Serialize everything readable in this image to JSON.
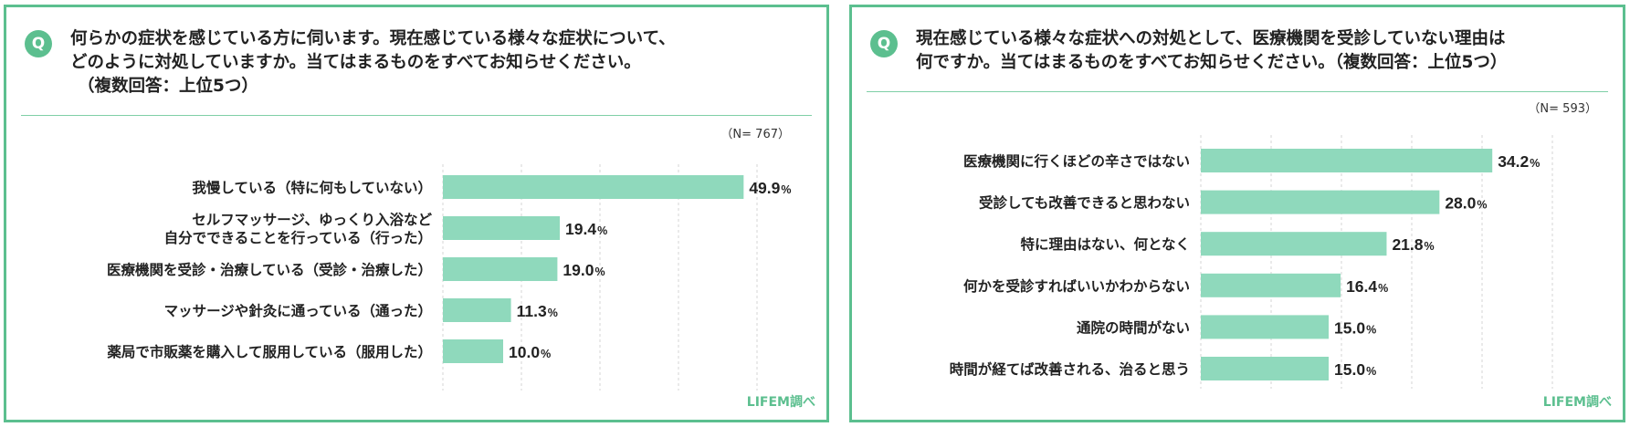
{
  "credit": "LIFEM調べ",
  "colors": {
    "bar": "#8fd9bc",
    "accent": "#5cbf8f"
  },
  "panels": [
    {
      "badge": "Q",
      "question_lines": [
        "何らかの症状を感じている方に伺います。現在感じている様々な症状について、",
        "どのように対処していますか。当てはまるものをすべてお知らせください。",
        "（複数回答：上位5つ）"
      ],
      "n_label": "（N= 767）"
    },
    {
      "badge": "Q",
      "question_lines": [
        "現在感じている様々な症状への対処として、医療機関を受診していない理由は",
        "何ですか。当てはまるものをすべてお知らせください。（複数回答：上位5つ）"
      ],
      "n_label": "（N= 593）"
    }
  ],
  "chart_data": [
    {
      "type": "bar",
      "orientation": "horizontal",
      "categories": [
        [
          "我慢している（特に何もしていない）"
        ],
        [
          "セルフマッサージ、ゆっくり入浴など",
          "自分でできることを行っている（行った）"
        ],
        [
          "医療機関を受診・治療している（受診・治療した）"
        ],
        [
          "マッサージや針灸に通っている（通った）"
        ],
        [
          "薬局で市販薬を購入して服用している（服用した）"
        ]
      ],
      "values": [
        49.9,
        19.4,
        19.0,
        11.3,
        10.0
      ],
      "value_labels": [
        "49.9",
        "19.4",
        "19.0",
        "11.3",
        "10.0"
      ],
      "unit": "%",
      "xlim": [
        0,
        100
      ],
      "grid": true
    },
    {
      "type": "bar",
      "orientation": "horizontal",
      "categories": [
        [
          "医療機関に行くほどの辛さではない"
        ],
        [
          "受診しても改善できると思わない"
        ],
        [
          "特に理由はない、何となく"
        ],
        [
          "何かを受診すればいいかわからない"
        ],
        [
          "通院の時間がない"
        ],
        [
          "時間が経てば改善される、治ると思う"
        ]
      ],
      "values": [
        34.2,
        28.0,
        21.8,
        16.4,
        15.0,
        15.0
      ],
      "value_labels": [
        "34.2",
        "28.0",
        "21.8",
        "16.4",
        "15.0",
        "15.0"
      ],
      "unit": "%",
      "xlim": [
        0,
        60
      ],
      "grid": true
    }
  ]
}
